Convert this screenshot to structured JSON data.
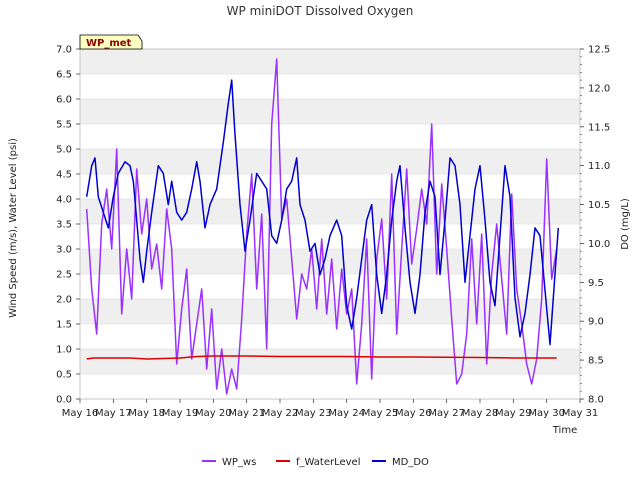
{
  "chart_data": {
    "type": "line",
    "title": "WP miniDOT Dissolved Oxygen",
    "badge": "WP_met",
    "xlabel": "Time",
    "ylabel_left": "Wind Speed (m/s), Water Level (psi)",
    "ylabel_right": "DO (mg/L)",
    "xlim": [
      16,
      31
    ],
    "ylim_left": [
      0.0,
      7.0
    ],
    "ylim_right": [
      8.0,
      12.5
    ],
    "x_ticks": [
      16,
      17,
      18,
      19,
      20,
      21,
      22,
      23,
      24,
      25,
      26,
      27,
      28,
      29,
      30,
      31
    ],
    "x_tick_labels": [
      "May 16",
      "May 17",
      "May 18",
      "May 19",
      "May 20",
      "May 21",
      "May 22",
      "May 23",
      "May 24",
      "May 25",
      "May 26",
      "May 27",
      "May 28",
      "May 29",
      "May 30",
      "May 31"
    ],
    "y_left_ticks": [
      "0.0",
      "0.5",
      "1.0",
      "1.5",
      "2.0",
      "2.5",
      "3.0",
      "3.5",
      "4.0",
      "4.5",
      "5.0",
      "5.5",
      "6.0",
      "6.5",
      "7.0"
    ],
    "y_right_ticks": [
      "8.0",
      "8.5",
      "9.0",
      "9.5",
      "10.0",
      "10.5",
      "11.0",
      "11.5",
      "12.0",
      "12.5"
    ],
    "grid": "horizontal bands",
    "legend_position": "bottom",
    "series": [
      {
        "name": "WP_ws",
        "color": "#9b30ff",
        "axis": "left",
        "points": [
          [
            16.2,
            3.8
          ],
          [
            16.35,
            2.2
          ],
          [
            16.5,
            1.3
          ],
          [
            16.65,
            3.5
          ],
          [
            16.8,
            4.2
          ],
          [
            16.95,
            3.0
          ],
          [
            17.1,
            5.0
          ],
          [
            17.25,
            1.7
          ],
          [
            17.4,
            3.0
          ],
          [
            17.55,
            2.0
          ],
          [
            17.7,
            4.6
          ],
          [
            17.85,
            3.3
          ],
          [
            18.0,
            4.0
          ],
          [
            18.15,
            2.6
          ],
          [
            18.3,
            3.1
          ],
          [
            18.45,
            2.2
          ],
          [
            18.6,
            3.8
          ],
          [
            18.75,
            3.0
          ],
          [
            18.9,
            0.7
          ],
          [
            19.05,
            1.8
          ],
          [
            19.2,
            2.6
          ],
          [
            19.35,
            0.8
          ],
          [
            19.5,
            1.5
          ],
          [
            19.65,
            2.2
          ],
          [
            19.8,
            0.6
          ],
          [
            19.95,
            1.8
          ],
          [
            20.1,
            0.2
          ],
          [
            20.25,
            1.0
          ],
          [
            20.4,
            0.1
          ],
          [
            20.55,
            0.6
          ],
          [
            20.7,
            0.2
          ],
          [
            20.85,
            1.6
          ],
          [
            21.0,
            3.3
          ],
          [
            21.15,
            4.5
          ],
          [
            21.3,
            2.2
          ],
          [
            21.45,
            3.7
          ],
          [
            21.6,
            1.0
          ],
          [
            21.75,
            5.5
          ],
          [
            21.9,
            6.8
          ],
          [
            22.05,
            3.6
          ],
          [
            22.2,
            4.0
          ],
          [
            22.35,
            2.8
          ],
          [
            22.5,
            1.6
          ],
          [
            22.65,
            2.5
          ],
          [
            22.8,
            2.2
          ],
          [
            22.95,
            3.0
          ],
          [
            23.1,
            1.8
          ],
          [
            23.25,
            3.2
          ],
          [
            23.4,
            1.7
          ],
          [
            23.55,
            2.8
          ],
          [
            23.7,
            1.4
          ],
          [
            23.85,
            2.6
          ],
          [
            24.0,
            1.7
          ],
          [
            24.15,
            2.2
          ],
          [
            24.3,
            0.3
          ],
          [
            24.45,
            1.5
          ],
          [
            24.6,
            3.2
          ],
          [
            24.75,
            0.4
          ],
          [
            24.9,
            2.8
          ],
          [
            25.05,
            3.6
          ],
          [
            25.2,
            2.0
          ],
          [
            25.35,
            4.5
          ],
          [
            25.5,
            1.3
          ],
          [
            25.65,
            3.0
          ],
          [
            25.8,
            4.6
          ],
          [
            25.95,
            2.7
          ],
          [
            26.1,
            3.4
          ],
          [
            26.25,
            4.2
          ],
          [
            26.4,
            3.5
          ],
          [
            26.55,
            5.5
          ],
          [
            26.7,
            2.5
          ],
          [
            26.85,
            4.3
          ],
          [
            27.0,
            3.0
          ],
          [
            27.15,
            1.6
          ],
          [
            27.3,
            0.3
          ],
          [
            27.45,
            0.5
          ],
          [
            27.6,
            1.3
          ],
          [
            27.75,
            3.2
          ],
          [
            27.9,
            1.5
          ],
          [
            28.05,
            3.3
          ],
          [
            28.2,
            0.7
          ],
          [
            28.35,
            2.5
          ],
          [
            28.5,
            3.5
          ],
          [
            28.65,
            2.4
          ],
          [
            28.8,
            1.3
          ],
          [
            28.95,
            4.1
          ],
          [
            29.1,
            2.2
          ],
          [
            29.25,
            1.5
          ],
          [
            29.4,
            0.7
          ],
          [
            29.55,
            0.3
          ],
          [
            29.7,
            0.8
          ],
          [
            29.85,
            2.0
          ],
          [
            30.0,
            4.8
          ],
          [
            30.15,
            2.4
          ],
          [
            30.3,
            3.0
          ]
        ]
      },
      {
        "name": "f_WaterLevel",
        "color": "#dd0000",
        "axis": "left",
        "points": [
          [
            16.2,
            0.8
          ],
          [
            16.4,
            0.82
          ],
          [
            17.5,
            0.82
          ],
          [
            18.0,
            0.8
          ],
          [
            19.0,
            0.82
          ],
          [
            19.5,
            0.85
          ],
          [
            20.0,
            0.86
          ],
          [
            21.0,
            0.86
          ],
          [
            22.0,
            0.85
          ],
          [
            24.0,
            0.85
          ],
          [
            25.0,
            0.84
          ],
          [
            26.0,
            0.84
          ],
          [
            28.0,
            0.83
          ],
          [
            29.0,
            0.82
          ],
          [
            30.3,
            0.82
          ]
        ]
      },
      {
        "name": "MD_DO",
        "color": "#0000cc",
        "axis": "right",
        "points": [
          [
            16.2,
            10.6
          ],
          [
            16.35,
            11.0
          ],
          [
            16.45,
            11.1
          ],
          [
            16.55,
            10.6
          ],
          [
            16.7,
            10.4
          ],
          [
            16.85,
            10.2
          ],
          [
            17.0,
            10.6
          ],
          [
            17.15,
            10.9
          ],
          [
            17.35,
            11.05
          ],
          [
            17.5,
            11.0
          ],
          [
            17.6,
            10.8
          ],
          [
            17.7,
            10.3
          ],
          [
            17.8,
            9.8
          ],
          [
            17.9,
            9.5
          ],
          [
            18.0,
            9.9
          ],
          [
            18.15,
            10.4
          ],
          [
            18.35,
            11.0
          ],
          [
            18.5,
            10.9
          ],
          [
            18.65,
            10.5
          ],
          [
            18.75,
            10.8
          ],
          [
            18.9,
            10.4
          ],
          [
            19.05,
            10.3
          ],
          [
            19.2,
            10.4
          ],
          [
            19.35,
            10.7
          ],
          [
            19.5,
            11.05
          ],
          [
            19.6,
            10.8
          ],
          [
            19.75,
            10.2
          ],
          [
            19.9,
            10.5
          ],
          [
            20.1,
            10.7
          ],
          [
            20.3,
            11.3
          ],
          [
            20.45,
            11.8
          ],
          [
            20.55,
            12.1
          ],
          [
            20.65,
            11.4
          ],
          [
            20.8,
            10.5
          ],
          [
            20.95,
            9.9
          ],
          [
            21.1,
            10.3
          ],
          [
            21.3,
            10.9
          ],
          [
            21.45,
            10.8
          ],
          [
            21.6,
            10.7
          ],
          [
            21.75,
            10.1
          ],
          [
            21.9,
            10.0
          ],
          [
            22.05,
            10.3
          ],
          [
            22.2,
            10.7
          ],
          [
            22.35,
            10.8
          ],
          [
            22.5,
            11.1
          ],
          [
            22.6,
            10.5
          ],
          [
            22.75,
            10.3
          ],
          [
            22.9,
            9.9
          ],
          [
            23.05,
            10.0
          ],
          [
            23.2,
            9.6
          ],
          [
            23.35,
            9.8
          ],
          [
            23.5,
            10.1
          ],
          [
            23.7,
            10.3
          ],
          [
            23.85,
            10.1
          ],
          [
            24.0,
            9.2
          ],
          [
            24.15,
            8.9
          ],
          [
            24.3,
            9.3
          ],
          [
            24.45,
            9.8
          ],
          [
            24.6,
            10.3
          ],
          [
            24.75,
            10.5
          ],
          [
            24.9,
            9.6
          ],
          [
            25.05,
            9.1
          ],
          [
            25.2,
            9.6
          ],
          [
            25.35,
            10.3
          ],
          [
            25.5,
            10.8
          ],
          [
            25.6,
            11.0
          ],
          [
            25.75,
            10.2
          ],
          [
            25.9,
            9.5
          ],
          [
            26.05,
            9.1
          ],
          [
            26.2,
            9.6
          ],
          [
            26.35,
            10.4
          ],
          [
            26.5,
            10.8
          ],
          [
            26.65,
            10.6
          ],
          [
            26.8,
            9.6
          ],
          [
            26.95,
            10.3
          ],
          [
            27.1,
            11.1
          ],
          [
            27.25,
            11.0
          ],
          [
            27.4,
            10.5
          ],
          [
            27.55,
            9.5
          ],
          [
            27.7,
            10.1
          ],
          [
            27.85,
            10.7
          ],
          [
            28.0,
            11.0
          ],
          [
            28.15,
            10.3
          ],
          [
            28.3,
            9.5
          ],
          [
            28.45,
            9.2
          ],
          [
            28.6,
            10.1
          ],
          [
            28.75,
            11.0
          ],
          [
            28.9,
            10.6
          ],
          [
            29.05,
            9.3
          ],
          [
            29.2,
            8.8
          ],
          [
            29.35,
            9.1
          ],
          [
            29.5,
            9.6
          ],
          [
            29.65,
            10.2
          ],
          [
            29.8,
            10.1
          ],
          [
            29.95,
            9.4
          ],
          [
            30.1,
            8.7
          ],
          [
            30.2,
            9.3
          ],
          [
            30.35,
            10.2
          ]
        ]
      }
    ]
  }
}
